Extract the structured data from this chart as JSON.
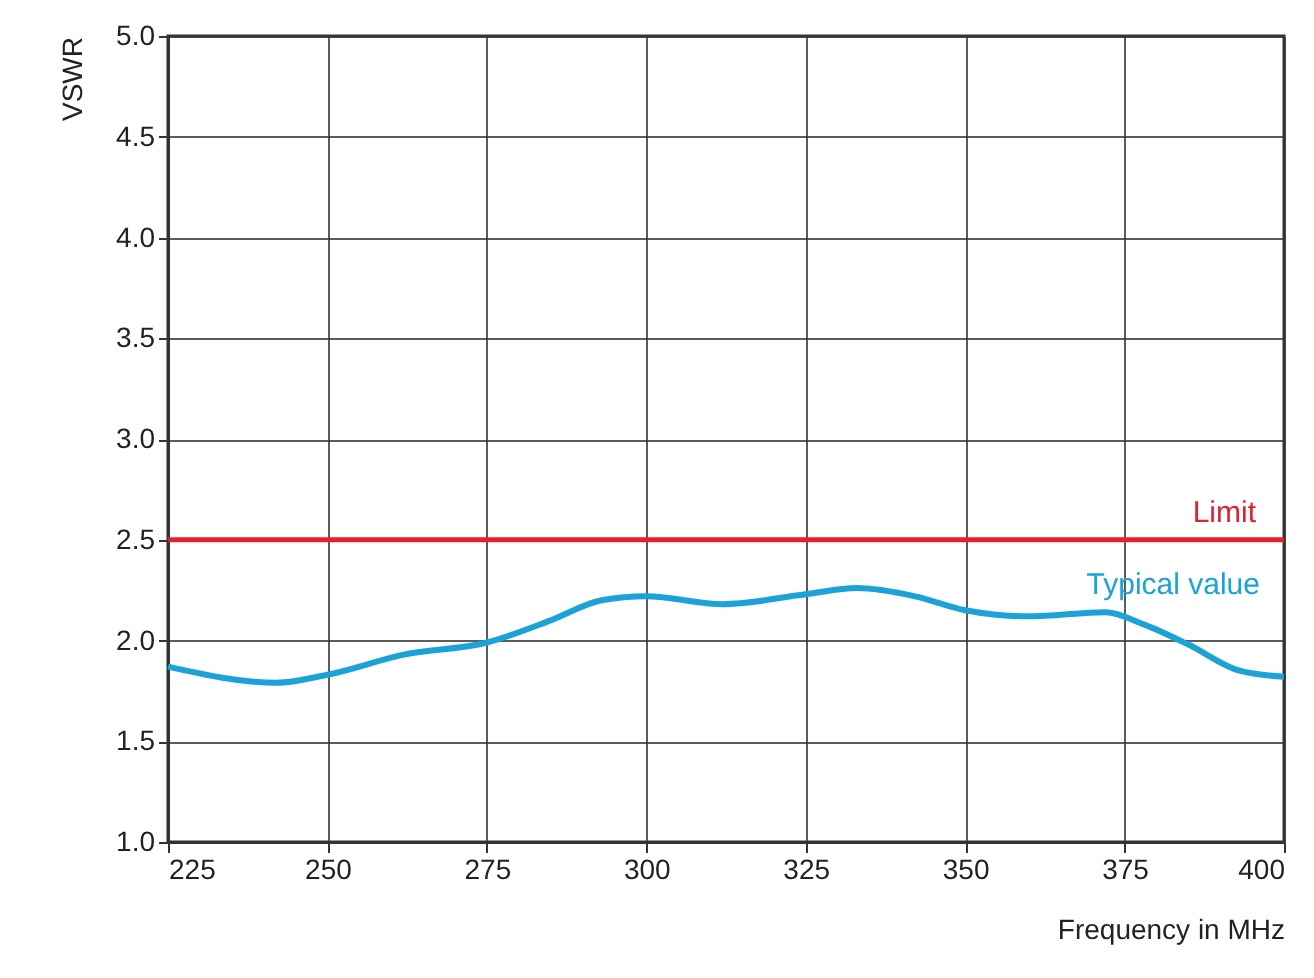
{
  "chart_data": {
    "type": "line",
    "xlabel": "Frequency in MHz",
    "ylabel": "VSWR",
    "xlim": [
      225,
      400
    ],
    "xticks": [
      225,
      250,
      275,
      300,
      325,
      350,
      375,
      400
    ],
    "ylim": [
      1.0,
      5.0
    ],
    "yticks": [
      {
        "value": 1.0,
        "label": "1.0"
      },
      {
        "value": 1.5,
        "label": "1.5"
      },
      {
        "value": 2.0,
        "label": "2.0"
      },
      {
        "value": 2.5,
        "label": "2.5"
      },
      {
        "value": 3.0,
        "label": "3.0"
      },
      {
        "value": 3.5,
        "label": "3.5"
      },
      {
        "value": 4.0,
        "label": "4.0"
      },
      {
        "value": 4.5,
        "label": "4.5"
      },
      {
        "value": 5.0,
        "label": "5.0"
      }
    ],
    "grid": true,
    "legend": false,
    "marker": "none",
    "line_style": "solid",
    "series": [
      {
        "name": "Typical value",
        "color": "#1ba3d8",
        "x": [
          225,
          242,
          250,
          262,
          275,
          285,
          293,
          300,
          312,
          325,
          333,
          342,
          350,
          360,
          372,
          378,
          385,
          393,
          400
        ],
        "values": [
          1.87,
          1.79,
          1.83,
          1.93,
          1.99,
          2.1,
          2.2,
          2.22,
          2.18,
          2.23,
          2.26,
          2.22,
          2.15,
          2.12,
          2.14,
          2.08,
          1.98,
          1.85,
          1.82
        ]
      }
    ],
    "ref_lines": [
      {
        "axis": "y",
        "value": 2.5,
        "label": "Limit",
        "color": "#e3202e",
        "line_style": "solid"
      }
    ]
  }
}
